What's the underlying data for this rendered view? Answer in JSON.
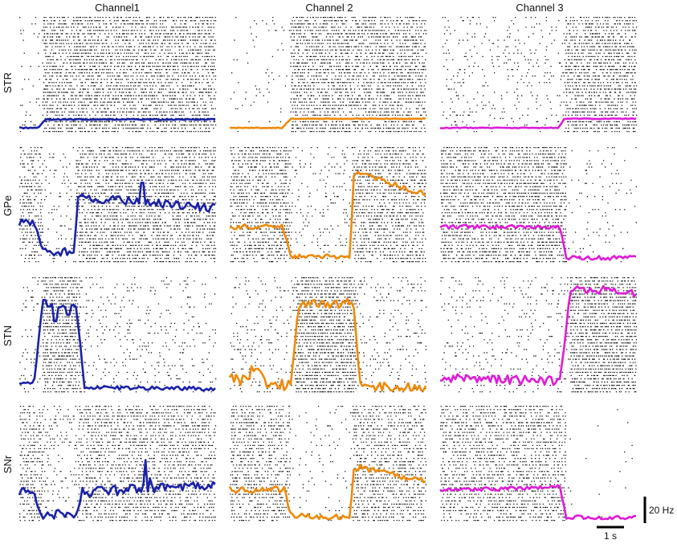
{
  "columns": [
    "Channel1",
    "Channel 2",
    "Channel 3"
  ],
  "rows": [
    "STR",
    "GPe",
    "STN",
    "SNr"
  ],
  "scale_bar": {
    "amplitude_label": "20 Hz",
    "time_label": "1 s"
  },
  "colors": {
    "Channel1": "#1a22a8",
    "Channel 2": "#ef8a0c",
    "Channel 3": "#e01bd8",
    "raster": "#111111"
  },
  "chart_data": {
    "type": "line",
    "description_units": {
      "x": "s",
      "y": "Hz"
    },
    "time_range_s": [
      0,
      4.65
    ],
    "series": [
      {
        "name": "",
        "channel": "Channel1",
        "nucleus": "STR",
        "steps": [
          [
            0,
            3
          ],
          [
            0.45,
            3
          ],
          [
            0.6,
            14
          ],
          [
            4.65,
            14
          ]
        ],
        "jitter": 0.8,
        "raster": {
          "base_density": 0.06,
          "episodes": [
            [
              0.55,
              4.65,
              0.62
            ]
          ]
        }
      },
      {
        "name": "",
        "channel": "Channel 2",
        "nucleus": "STR",
        "steps": [
          [
            0,
            3
          ],
          [
            1.25,
            3
          ],
          [
            1.45,
            15
          ],
          [
            4.65,
            15
          ]
        ],
        "jitter": 0.5,
        "raster": {
          "base_density": 0.06,
          "episodes": [
            [
              1.45,
              4.65,
              0.62
            ]
          ]
        }
      },
      {
        "name": "",
        "channel": "Channel 3",
        "nucleus": "STR",
        "steps": [
          [
            0,
            3
          ],
          [
            2.8,
            3
          ],
          [
            2.95,
            15
          ],
          [
            4.65,
            15
          ]
        ],
        "jitter": 0.5,
        "raster": {
          "base_density": 0.12,
          "episodes": [
            [
              2.95,
              4.65,
              0.62
            ]
          ]
        }
      },
      {
        "name": "",
        "channel": "Channel1",
        "nucleus": "GPe",
        "steps": [
          [
            0,
            45
          ],
          [
            0.35,
            45
          ],
          [
            0.55,
            10
          ],
          [
            1.3,
            10
          ],
          [
            1.4,
            75
          ],
          [
            4.65,
            62
          ]
        ],
        "spikes": [
          [
            1.5,
            78
          ],
          [
            2.9,
            92
          ],
          [
            3.05,
            72
          ]
        ],
        "jitter": 5,
        "raster": {
          "base_density": 0.45,
          "episodes": [
            [
              0.55,
              1.3,
              0.12
            ],
            [
              1.4,
              4.65,
              0.6
            ]
          ]
        }
      },
      {
        "name": "",
        "channel": "Channel 2",
        "nucleus": "GPe",
        "steps": [
          [
            0,
            40
          ],
          [
            1.25,
            40
          ],
          [
            1.45,
            4
          ],
          [
            2.85,
            4
          ],
          [
            2.95,
            105
          ],
          [
            4.65,
            78
          ]
        ],
        "jitter": 3,
        "raster": {
          "base_density": 0.55,
          "episodes": [
            [
              1.45,
              2.9,
              0.12
            ],
            [
              2.95,
              4.65,
              0.55
            ]
          ]
        }
      },
      {
        "name": "",
        "channel": "Channel 3",
        "nucleus": "GPe",
        "steps": [
          [
            0,
            40
          ],
          [
            2.85,
            40
          ],
          [
            3.0,
            3
          ],
          [
            4.65,
            3
          ]
        ],
        "jitter": 2.5,
        "raster": {
          "base_density": 0.62,
          "episodes": [
            [
              3.0,
              4.65,
              0.06
            ]
          ]
        }
      },
      {
        "name": "",
        "channel": "Channel1",
        "nucleus": "STN",
        "steps": [
          [
            0,
            8
          ],
          [
            0.35,
            8
          ],
          [
            0.55,
            92
          ],
          [
            1.35,
            92
          ],
          [
            1.55,
            3
          ],
          [
            4.65,
            2
          ]
        ],
        "spikes": [
          [
            0.6,
            98
          ],
          [
            0.85,
            75
          ],
          [
            1.15,
            82
          ]
        ],
        "jitter": 2,
        "raster": {
          "base_density": 0.12,
          "episodes": [
            [
              0.55,
              1.45,
              0.72
            ]
          ]
        }
      },
      {
        "name": "",
        "channel": "Channel 2",
        "nucleus": "STN",
        "steps": [
          [
            0,
            12
          ],
          [
            0.45,
            12
          ],
          [
            0.55,
            25
          ],
          [
            0.75,
            25
          ],
          [
            0.85,
            6
          ],
          [
            1.45,
            6
          ],
          [
            1.65,
            95
          ],
          [
            2.95,
            95
          ],
          [
            3.1,
            3
          ],
          [
            4.65,
            2
          ]
        ],
        "jitter": 6,
        "raster": {
          "base_density": 0.14,
          "episodes": [
            [
              1.55,
              3.0,
              0.72
            ]
          ]
        }
      },
      {
        "name": "",
        "channel": "Channel 3",
        "nucleus": "STN",
        "steps": [
          [
            0,
            14
          ],
          [
            2.85,
            10
          ],
          [
            3.1,
            112
          ],
          [
            4.65,
            105
          ]
        ],
        "jitter": 5,
        "raster": {
          "base_density": 0.13,
          "episodes": [
            [
              3.05,
              4.65,
              0.72
            ]
          ]
        }
      },
      {
        "name": "",
        "channel": "Channel1",
        "nucleus": "SNr",
        "steps": [
          [
            0,
            32
          ],
          [
            0.35,
            32
          ],
          [
            0.55,
            6
          ],
          [
            1.4,
            6
          ],
          [
            1.5,
            32
          ],
          [
            4.65,
            40
          ]
        ],
        "spikes": [
          [
            3.0,
            70
          ],
          [
            3.1,
            48
          ]
        ],
        "jitter": 6,
        "raster": {
          "base_density": 0.5,
          "episodes": [
            [
              0.55,
              1.4,
              0.18
            ]
          ]
        }
      },
      {
        "name": "",
        "channel": "Channel 2",
        "nucleus": "SNr",
        "steps": [
          [
            0,
            35
          ],
          [
            1.3,
            35
          ],
          [
            1.45,
            3
          ],
          [
            2.85,
            3
          ],
          [
            2.95,
            62
          ],
          [
            4.65,
            45
          ]
        ],
        "jitter": 4,
        "raster": {
          "base_density": 0.5,
          "episodes": [
            [
              1.45,
              2.9,
              0.06
            ]
          ]
        }
      },
      {
        "name": "",
        "channel": "Channel 3",
        "nucleus": "SNr",
        "steps": [
          [
            0,
            34
          ],
          [
            2.85,
            38
          ],
          [
            3.0,
            2
          ],
          [
            4.65,
            2
          ]
        ],
        "jitter": 2.5,
        "raster": {
          "base_density": 0.5,
          "episodes": [
            [
              3.0,
              4.65,
              0.01
            ]
          ]
        }
      }
    ]
  }
}
